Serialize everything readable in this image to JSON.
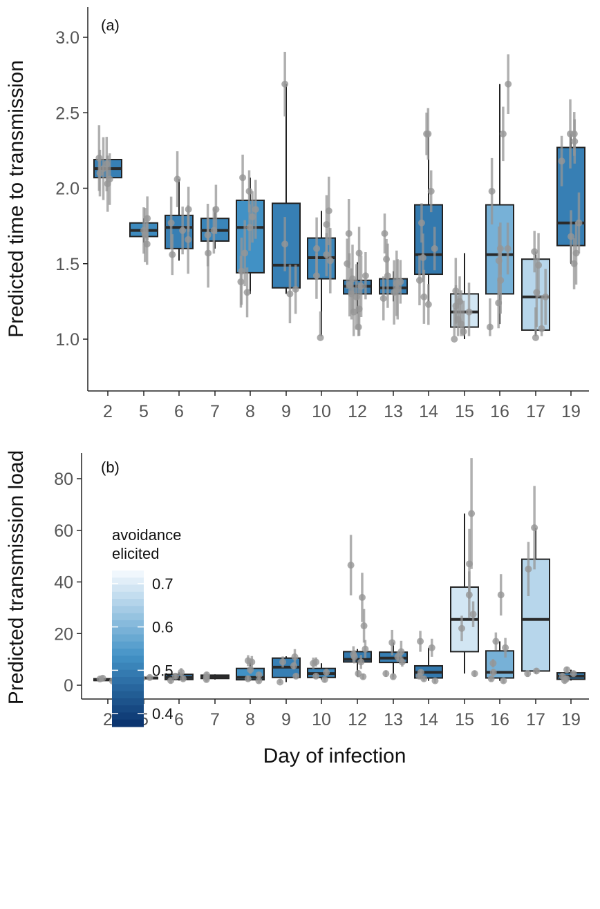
{
  "chart_data": [
    {
      "type": "box",
      "panel_label": "(a)",
      "xlabel": "",
      "ylabel": "Predicted time to transmission",
      "categories": [
        "2",
        "5",
        "6",
        "7",
        "8",
        "9",
        "10",
        "12",
        "13",
        "14",
        "15",
        "16",
        "17",
        "19"
      ],
      "ylim": [
        0.75,
        3.2
      ],
      "yticks": [
        "1.0",
        "1.5",
        "2.0",
        "2.5",
        "3.0"
      ],
      "boxes": [
        {
          "cat": "2",
          "q1": 2.07,
          "median": 2.13,
          "q3": 2.19,
          "lo": 2.07,
          "hi": 2.19,
          "avoid": 0.5
        },
        {
          "cat": "5",
          "q1": 1.68,
          "median": 1.72,
          "q3": 1.77,
          "lo": 1.64,
          "hi": 1.8,
          "avoid": 0.52
        },
        {
          "cat": "6",
          "q1": 1.6,
          "median": 1.74,
          "q3": 1.82,
          "lo": 1.52,
          "hi": 2.06,
          "avoid": 0.5
        },
        {
          "cat": "7",
          "q1": 1.65,
          "median": 1.72,
          "q3": 1.8,
          "lo": 1.6,
          "hi": 1.86,
          "avoid": 0.51
        },
        {
          "cat": "8",
          "q1": 1.44,
          "median": 1.74,
          "q3": 1.92,
          "lo": 1.3,
          "hi": 2.07,
          "avoid": 0.53
        },
        {
          "cat": "9",
          "q1": 1.34,
          "median": 1.49,
          "q3": 1.9,
          "lo": 1.3,
          "hi": 2.69,
          "avoid": 0.5
        },
        {
          "cat": "10",
          "q1": 1.4,
          "median": 1.54,
          "q3": 1.67,
          "lo": 1.02,
          "hi": 1.85,
          "avoid": 0.51
        },
        {
          "cat": "12",
          "q1": 1.3,
          "median": 1.35,
          "q3": 1.39,
          "lo": 1.17,
          "hi": 1.51,
          "avoid": 0.49
        },
        {
          "cat": "13",
          "q1": 1.3,
          "median": 1.34,
          "q3": 1.4,
          "lo": 1.25,
          "hi": 1.45,
          "avoid": 0.5
        },
        {
          "cat": "14",
          "q1": 1.43,
          "median": 1.56,
          "q3": 1.89,
          "lo": 1.25,
          "hi": 2.36,
          "avoid": 0.49
        },
        {
          "cat": "15",
          "q1": 1.08,
          "median": 1.18,
          "q3": 1.3,
          "lo": 1.0,
          "hi": 1.57,
          "avoid": 0.69
        },
        {
          "cat": "16",
          "q1": 1.3,
          "median": 1.56,
          "q3": 1.89,
          "lo": 1.1,
          "hi": 2.69,
          "avoid": 0.59
        },
        {
          "cat": "17",
          "q1": 1.06,
          "median": 1.28,
          "q3": 1.53,
          "lo": 1.02,
          "hi": 1.58,
          "avoid": 0.66
        },
        {
          "cat": "19",
          "q1": 1.62,
          "median": 1.77,
          "q3": 2.27,
          "lo": 1.5,
          "hi": 2.36,
          "avoid": 0.5
        }
      ],
      "points": {
        "2": [
          2.03,
          2.1,
          2.16,
          2.2,
          2.06,
          2.13
        ],
        "5": [
          1.63,
          1.72,
          1.8,
          1.69
        ],
        "6": [
          1.56,
          1.66,
          1.77,
          1.86,
          2.06,
          1.72
        ],
        "7": [
          1.57,
          1.72,
          1.86,
          1.69
        ],
        "8": [
          1.31,
          1.45,
          1.57,
          1.74,
          1.81,
          1.86,
          2.07,
          1.98,
          1.38
        ],
        "9": [
          1.3,
          1.33,
          1.63,
          2.69
        ],
        "10": [
          1.01,
          1.42,
          1.56,
          1.6,
          1.85,
          1.52,
          1.76
        ],
        "12": [
          1.08,
          1.18,
          1.3,
          1.35,
          1.4,
          1.5,
          1.57,
          1.7,
          1.28,
          1.2,
          1.36,
          1.42
        ],
        "13": [
          1.27,
          1.33,
          1.37,
          1.42,
          1.53,
          1.7,
          1.31,
          1.38
        ],
        "14": [
          1.23,
          1.28,
          1.39,
          1.54,
          1.6,
          1.77,
          1.98,
          2.36,
          2.36
        ],
        "15": [
          1.0,
          1.05,
          1.1,
          1.18,
          1.25,
          1.32,
          1.22,
          1.13
        ],
        "16": [
          1.08,
          1.24,
          1.39,
          1.6,
          1.98,
          2.36,
          2.69,
          1.52,
          1.6
        ],
        "17": [
          1.01,
          1.07,
          1.31,
          1.49,
          1.58,
          1.28
        ],
        "19": [
          1.5,
          1.57,
          1.68,
          1.77,
          2.18,
          2.36,
          2.36,
          2.31
        ]
      }
    },
    {
      "type": "box",
      "panel_label": "(b)",
      "xlabel": "Day of infection",
      "ylabel": "Predicted transmission load",
      "categories": [
        "2",
        "5",
        "6",
        "7",
        "8",
        "9",
        "10",
        "12",
        "13",
        "14",
        "15",
        "16",
        "17",
        "19"
      ],
      "ylim": [
        -2,
        85
      ],
      "yticks": [
        "0",
        "20",
        "40",
        "60",
        "80"
      ],
      "boxes": [
        {
          "cat": "2",
          "q1": 1.8,
          "median": 2.1,
          "q3": 2.5,
          "lo": 1.6,
          "hi": 2.7,
          "avoid": 0.5
        },
        {
          "cat": "5",
          "q1": 2.5,
          "median": 2.8,
          "q3": 3.0,
          "lo": 2.4,
          "hi": 3.1,
          "avoid": 0.52
        },
        {
          "cat": "6",
          "q1": 2.2,
          "median": 3.0,
          "q3": 4.2,
          "lo": 1.8,
          "hi": 5.0,
          "avoid": 0.5
        },
        {
          "cat": "7",
          "q1": 2.6,
          "median": 3.1,
          "q3": 3.9,
          "lo": 2.2,
          "hi": 4.2,
          "avoid": 0.51
        },
        {
          "cat": "8",
          "q1": 2.1,
          "median": 3.0,
          "q3": 6.5,
          "lo": 1.7,
          "hi": 9.0,
          "avoid": 0.53
        },
        {
          "cat": "9",
          "q1": 3.0,
          "median": 7.0,
          "q3": 10.5,
          "lo": 1.2,
          "hi": 11.2,
          "avoid": 0.5
        },
        {
          "cat": "10",
          "q1": 3.0,
          "median": 4.5,
          "q3": 6.5,
          "lo": 2.2,
          "hi": 8.5,
          "avoid": 0.51
        },
        {
          "cat": "12",
          "q1": 9.0,
          "median": 10.0,
          "q3": 13.0,
          "lo": 3.3,
          "hi": 14.0,
          "avoid": 0.49
        },
        {
          "cat": "13",
          "q1": 8.8,
          "median": 10.5,
          "q3": 12.8,
          "lo": 3.3,
          "hi": 16.5,
          "avoid": 0.5
        },
        {
          "cat": "14",
          "q1": 2.8,
          "median": 5.0,
          "q3": 7.5,
          "lo": 1.7,
          "hi": 14.5,
          "avoid": 0.49
        },
        {
          "cat": "15",
          "q1": 13.0,
          "median": 25.5,
          "q3": 38.0,
          "lo": 4.5,
          "hi": 66.5,
          "avoid": 0.69
        },
        {
          "cat": "16",
          "q1": 2.8,
          "median": 5.0,
          "q3": 13.3,
          "lo": 1.7,
          "hi": 17.0,
          "avoid": 0.59
        },
        {
          "cat": "17",
          "q1": 5.5,
          "median": 25.5,
          "q3": 48.8,
          "lo": 4.5,
          "hi": 61.0,
          "avoid": 0.66
        },
        {
          "cat": "19",
          "q1": 2.3,
          "median": 3.5,
          "q3": 4.8,
          "lo": 1.8,
          "hi": 6.0,
          "avoid": 0.5
        }
      ],
      "points": {
        "2": [
          1.6,
          2.0,
          2.4,
          2.7
        ],
        "5": [
          2.6,
          3.0
        ],
        "6": [
          1.8,
          2.5,
          3.5,
          5.0
        ],
        "7": [
          2.2,
          3.0,
          4.0
        ],
        "8": [
          1.7,
          2.5,
          4.0,
          6.0,
          9.0,
          9.5
        ],
        "9": [
          1.2,
          3.5,
          7.5,
          9.0,
          11.0
        ],
        "10": [
          2.2,
          3.5,
          5.0,
          8.5,
          9.0
        ],
        "12": [
          3.3,
          4.5,
          9.0,
          11.0,
          12.0,
          14.0,
          23.0,
          34.0,
          46.5
        ],
        "13": [
          3.3,
          4.5,
          9.0,
          11.0,
          13.0,
          16.5
        ],
        "14": [
          1.7,
          2.5,
          3.5,
          5.0,
          14.5,
          17.0
        ],
        "15": [
          4.5,
          22.0,
          27.5,
          35.0,
          47.0,
          66.5
        ],
        "16": [
          1.7,
          2.5,
          5.0,
          8.5,
          14.5,
          17.0,
          35.0
        ],
        "17": [
          4.5,
          5.5,
          45.0,
          61.0
        ],
        "19": [
          1.8,
          2.5,
          3.5,
          4.5,
          6.0
        ]
      },
      "legend": {
        "title": "avoidance elicited",
        "title_lines": [
          "avoidance",
          "elicited"
        ],
        "ticks": [
          "0.4",
          "0.5",
          "0.6",
          "0.7"
        ],
        "range": [
          0.37,
          0.73
        ],
        "colors": {
          "low": "#08306b",
          "mid": "#4292c6",
          "high": "#f7fbff"
        }
      }
    }
  ]
}
